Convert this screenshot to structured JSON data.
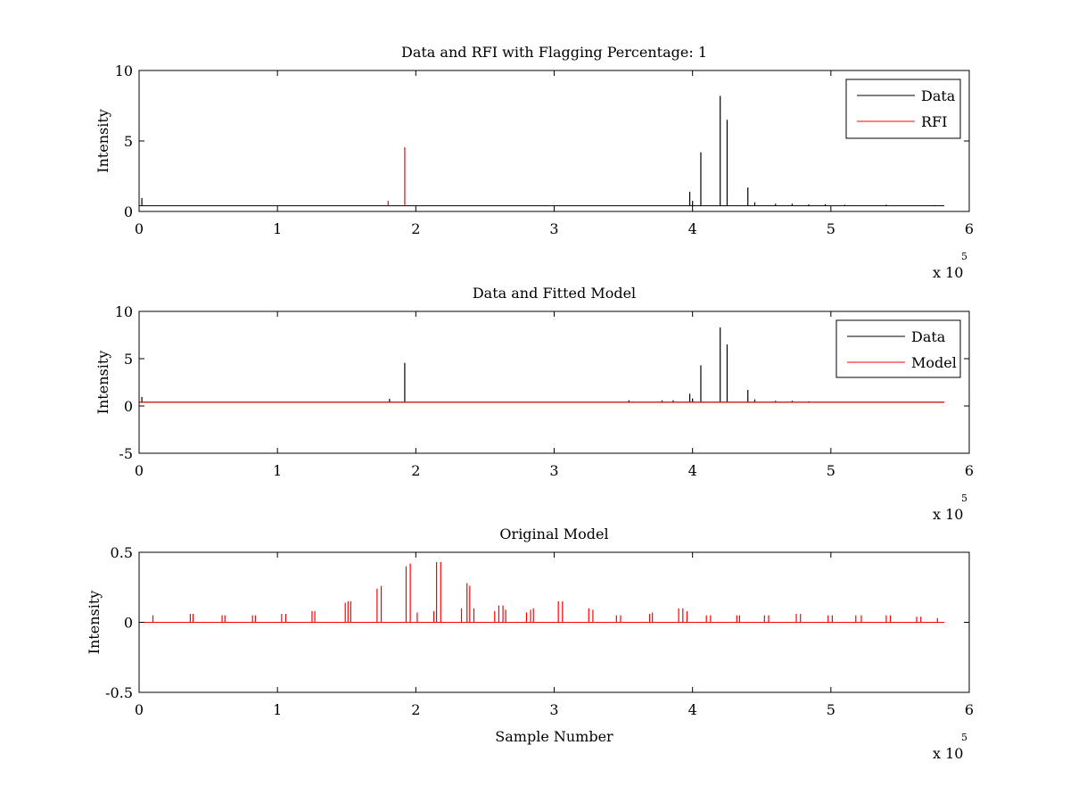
{
  "figure": {
    "background": "#ffffff"
  },
  "chart_data": [
    {
      "type": "line",
      "title": "Data and RFI with Flagging Percentage: 1",
      "xlabel": "",
      "ylabel": "Intensity",
      "xlim": [
        0,
        600000
      ],
      "ylim": [
        0,
        10
      ],
      "xticks": [
        0,
        1,
        2,
        3,
        4,
        5,
        6
      ],
      "yticks": [
        0,
        5,
        10
      ],
      "x_multiplier_label": "x 10",
      "x_multiplier_exponent": "5",
      "grid": false,
      "legend": "top-right",
      "baseline": 0.4,
      "x_end": 582000,
      "series": [
        {
          "name": "Data",
          "color": "#000000",
          "spikes": [
            [
              2000,
              0.95
            ],
            [
              150000,
              0.42
            ],
            [
              398000,
              1.4
            ],
            [
              400000,
              0.75
            ],
            [
              406000,
              4.2
            ],
            [
              420000,
              8.2
            ],
            [
              425000,
              6.5
            ],
            [
              440000,
              1.7
            ],
            [
              445000,
              0.65
            ],
            [
              460000,
              0.55
            ],
            [
              472000,
              0.55
            ],
            [
              484000,
              0.5
            ],
            [
              496000,
              0.5
            ],
            [
              510000,
              0.48
            ],
            [
              540000,
              0.48
            ],
            [
              575000,
              0.45
            ]
          ]
        },
        {
          "name": "RFI",
          "color": "#ff0000",
          "spikes": [
            [
              180000,
              0.75
            ],
            [
              192000,
              4.55
            ]
          ]
        }
      ]
    },
    {
      "type": "line",
      "title": "Data and Fitted Model",
      "xlabel": "",
      "ylabel": "Intensity",
      "xlim": [
        0,
        600000
      ],
      "ylim": [
        -5,
        10
      ],
      "xticks": [
        0,
        1,
        2,
        3,
        4,
        5,
        6
      ],
      "yticks": [
        -5,
        0,
        5,
        10
      ],
      "x_multiplier_label": "x 10",
      "x_multiplier_exponent": "5",
      "grid": false,
      "legend": "top-right",
      "baseline": 0.4,
      "x_end": 582000,
      "series": [
        {
          "name": "Data",
          "color": "#000000",
          "spikes": [
            [
              2000,
              0.95
            ],
            [
              181000,
              0.75
            ],
            [
              192000,
              4.55
            ],
            [
              354000,
              0.6
            ],
            [
              378000,
              0.6
            ],
            [
              386000,
              0.6
            ],
            [
              398000,
              1.3
            ],
            [
              400000,
              0.8
            ],
            [
              406000,
              4.3
            ],
            [
              420000,
              8.3
            ],
            [
              425000,
              6.5
            ],
            [
              440000,
              1.7
            ],
            [
              445000,
              0.7
            ],
            [
              460000,
              0.55
            ],
            [
              472000,
              0.55
            ],
            [
              484000,
              0.5
            ]
          ]
        },
        {
          "name": "Model",
          "color": "#ff0000",
          "spikes": []
        }
      ]
    },
    {
      "type": "line",
      "title": "Original Model",
      "xlabel": "Sample Number",
      "ylabel": "Intensity",
      "xlim": [
        0,
        600000
      ],
      "ylim": [
        -0.5,
        0.5
      ],
      "xticks": [
        0,
        1,
        2,
        3,
        4,
        5,
        6
      ],
      "yticks": [
        -0.5,
        0,
        0.5
      ],
      "x_multiplier_label": "x 10",
      "x_multiplier_exponent": "5",
      "grid": false,
      "legend": "none",
      "baseline": 0,
      "x_end": 582000,
      "series": [
        {
          "name": "",
          "color": "#ff0000",
          "spikes": [
            [
              10000,
              0.05
            ],
            [
              37000,
              0.06
            ],
            [
              39000,
              0.06
            ],
            [
              60000,
              0.05
            ],
            [
              62000,
              0.05
            ],
            [
              82000,
              0.05
            ],
            [
              84000,
              0.05
            ],
            [
              103000,
              0.06
            ],
            [
              106000,
              0.06
            ],
            [
              125000,
              0.08
            ],
            [
              127000,
              0.08
            ],
            [
              149000,
              0.14
            ],
            [
              151000,
              0.15
            ],
            [
              153000,
              0.15
            ],
            [
              172000,
              0.24
            ],
            [
              175000,
              0.26
            ],
            [
              193000,
              0.4
            ],
            [
              196000,
              0.42
            ],
            [
              201000,
              0.07
            ],
            [
              213000,
              0.08
            ],
            [
              215000,
              0.43
            ],
            [
              218000,
              0.43
            ],
            [
              233000,
              0.1
            ],
            [
              237000,
              0.28
            ],
            [
              239000,
              0.26
            ],
            [
              242000,
              0.1
            ],
            [
              257000,
              0.08
            ],
            [
              260000,
              0.12
            ],
            [
              263000,
              0.12
            ],
            [
              265000,
              0.09
            ],
            [
              280000,
              0.07
            ],
            [
              283000,
              0.09
            ],
            [
              285000,
              0.1
            ],
            [
              303000,
              0.15
            ],
            [
              306000,
              0.15
            ],
            [
              325000,
              0.1
            ],
            [
              328000,
              0.09
            ],
            [
              345000,
              0.05
            ],
            [
              348000,
              0.05
            ],
            [
              369000,
              0.06
            ],
            [
              371000,
              0.07
            ],
            [
              390000,
              0.1
            ],
            [
              393000,
              0.1
            ],
            [
              396000,
              0.08
            ],
            [
              410000,
              0.05
            ],
            [
              413000,
              0.05
            ],
            [
              432000,
              0.05
            ],
            [
              434000,
              0.05
            ],
            [
              452000,
              0.05
            ],
            [
              455000,
              0.05
            ],
            [
              475000,
              0.06
            ],
            [
              478000,
              0.06
            ],
            [
              498000,
              0.05
            ],
            [
              501000,
              0.05
            ],
            [
              518000,
              0.05
            ],
            [
              522000,
              0.05
            ],
            [
              540000,
              0.05
            ],
            [
              543000,
              0.05
            ],
            [
              562000,
              0.04
            ],
            [
              565000,
              0.04
            ],
            [
              577000,
              0.03
            ]
          ]
        }
      ]
    }
  ]
}
